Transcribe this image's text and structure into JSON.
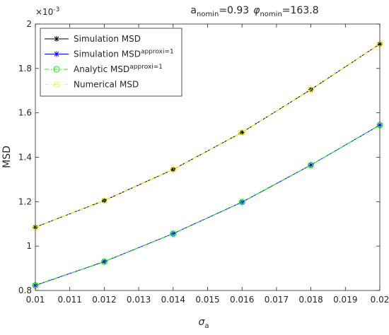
{
  "chart_data": {
    "type": "line",
    "title": {
      "a_sym": "a",
      "a_sub": "nomin",
      "a_val": "=0.93",
      "phi_sym": "φ",
      "phi_sub": "nomin",
      "phi_val": "=163.8"
    },
    "xlabel": {
      "sym": "σ",
      "sub": "a"
    },
    "ylabel": "MSD",
    "y_exponent": "×10",
    "y_exponent_power": "-3",
    "xlim": [
      0.01,
      0.02
    ],
    "ylim": [
      0.8,
      2.0
    ],
    "x_ticks": [
      "0.01",
      "0.011",
      "0.012",
      "0.013",
      "0.014",
      "0.015",
      "0.016",
      "0.017",
      "0.018",
      "0.019",
      "0.02"
    ],
    "y_ticks": [
      "0.8",
      "1",
      "1.2",
      "1.4",
      "1.6",
      "1.8",
      "2"
    ],
    "x": [
      0.01,
      0.012,
      0.014,
      0.016,
      0.018,
      0.02
    ],
    "series": [
      {
        "name": "Simulation MSD",
        "name_sup": "",
        "color": "#000000",
        "marker": "asterisk",
        "dash": "solid",
        "values": [
          1.085,
          1.205,
          1.345,
          1.512,
          1.705,
          1.91
        ]
      },
      {
        "name": "Simulation MSD",
        "name_sup": "approxi=1",
        "color": "#0000ff",
        "marker": "asterisk",
        "dash": "solid",
        "values": [
          0.823,
          0.93,
          1.056,
          1.198,
          1.365,
          1.545
        ]
      },
      {
        "name": "Analytic MSD",
        "name_sup": "approxi=1",
        "color": "#00ff00",
        "marker": "circle",
        "dash": "dashdot",
        "values": [
          0.823,
          0.93,
          1.056,
          1.198,
          1.365,
          1.545
        ]
      },
      {
        "name": "Numerical MSD",
        "name_sup": "",
        "color": "#ffff00",
        "marker": "circle",
        "dash": "dashdot",
        "values": [
          1.085,
          1.205,
          1.345,
          1.512,
          1.705,
          1.91
        ]
      }
    ],
    "grid": false,
    "legend_position": "top-left"
  }
}
